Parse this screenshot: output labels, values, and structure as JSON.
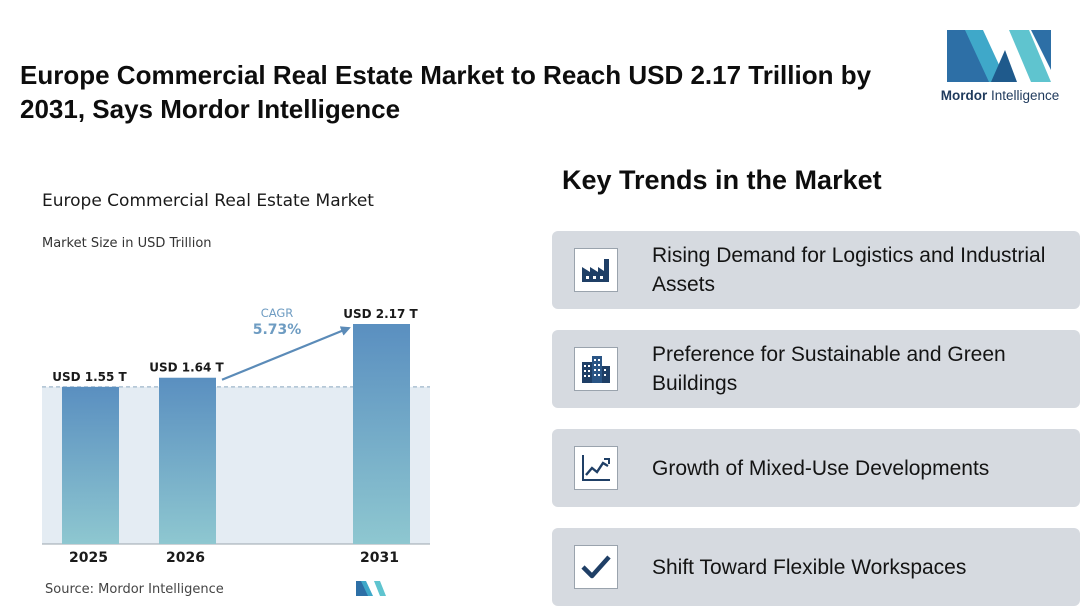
{
  "headline": "Europe Commercial Real Estate Market to Reach USD 2.17 Trillion by 2031, Says Mordor Intelligence",
  "logo": {
    "brand": "Mordor",
    "suffix": "Intelligence"
  },
  "chart_data": {
    "type": "bar",
    "title": "Europe Commercial Real Estate Market",
    "subtitle": "Market Size in USD Trillion",
    "categories": [
      "2025",
      "2026",
      "2031"
    ],
    "values": [
      1.55,
      1.64,
      2.17
    ],
    "data_labels": [
      "USD 1.55 T",
      "USD 1.64 T",
      "USD 2.17 T"
    ],
    "cagr_label": "CAGR",
    "cagr_value": "5.73%",
    "ylim": [
      0,
      2.17
    ],
    "baseline_reference": 1.55,
    "xlabel": "",
    "ylabel": "",
    "grid": false,
    "colors": {
      "bar_top": "#5a8fc0",
      "bar_bottom": "#8ec7d0",
      "band": "#e4ecf3",
      "arrow": "#5b8bb8",
      "cagr_text": "#6e9cc2"
    },
    "source": "Source:  Mordor Intelligence"
  },
  "trends": {
    "title": "Key Trends in the Market",
    "items": [
      {
        "icon": "factory-icon",
        "label": "Rising Demand for Logistics and Industrial Assets"
      },
      {
        "icon": "buildings-icon",
        "label": "Preference for Sustainable and Green Buildings"
      },
      {
        "icon": "line-chart-icon",
        "label": "Growth of Mixed-Use Developments"
      },
      {
        "icon": "checkmark-icon",
        "label": "Shift Toward Flexible Workspaces"
      }
    ]
  }
}
